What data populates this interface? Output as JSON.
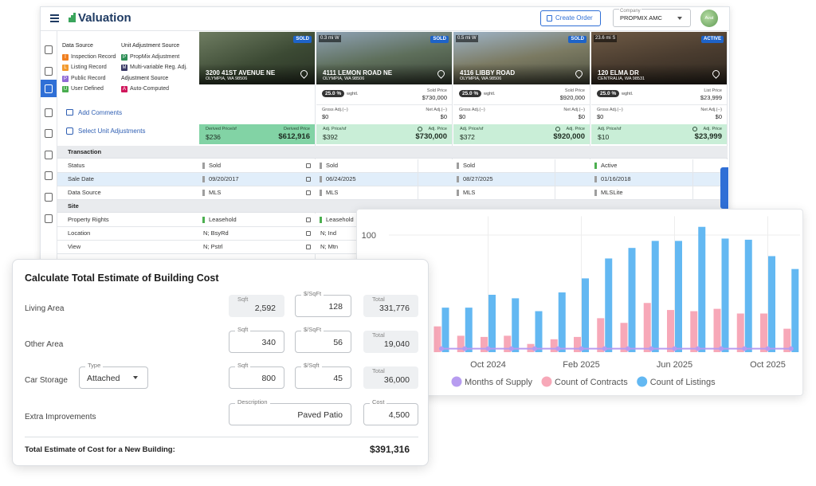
{
  "header": {
    "app_title": "Valuation",
    "create_order": "Create Order",
    "company_label": "Company",
    "company": "PROPMIX AMC",
    "avatar": "Avat"
  },
  "legend": {
    "data_source_title": "Data Source",
    "unit_adjustment_title": "Unit Adjustment Source",
    "adjustment_source_title": "Adjustment Source",
    "data_sources": [
      {
        "code": "I",
        "label": "Inspection Record",
        "color": "#f07f1f"
      },
      {
        "code": "L",
        "label": "Listing Record",
        "color": "#f29a2e"
      },
      {
        "code": "P",
        "label": "Public Record",
        "color": "#8f6ad6"
      },
      {
        "code": "U",
        "label": "User Defined",
        "color": "#49ad4f"
      }
    ],
    "unit_adjustment_sources": [
      {
        "code": "P",
        "label": "PropMix Adjustment",
        "color": "#2f8f57"
      },
      {
        "code": "M",
        "label": "Multi-variable Reg. Adj.",
        "color": "#3a3a66"
      }
    ],
    "adjustment_sources": [
      {
        "code": "A",
        "label": "Auto-Computed",
        "color": "#d0175c"
      }
    ]
  },
  "actions": {
    "add_comments": "Add Comments",
    "select_adjustments": "Select Unit Adjustments"
  },
  "properties": [
    {
      "badge": "SOLD",
      "address": "3200 41ST AVENUE NE",
      "city": "OLYMPIA, WA 98506",
      "footer_left_label": "Derived Price/sf",
      "footer_left": "$236",
      "footer_right_label": "Derived Price",
      "footer_right": "$612,916"
    },
    {
      "badge": "SOLD",
      "distance": "0.3 mi W",
      "address": "4111 LEMON ROAD NE",
      "city": "OLYMPIA, WA 98506",
      "weight": "25.0 %",
      "weight_label": "wghtl.",
      "price_label": "Sold Price",
      "price": "$730,000",
      "gross_label": "Gross Adj.(--)",
      "gross": "$0",
      "net_label": "Net Adj.(--)",
      "net": "$0",
      "footer_left_label": "Adj. Price/sf",
      "footer_left": "$392",
      "footer_right_label": "Adj. Price",
      "footer_right": "$730,000"
    },
    {
      "badge": "SOLD",
      "distance": "0.5 mi W",
      "address": "4116 LIBBY ROAD",
      "city": "OLYMPIA, WA 98506",
      "weight": "25.0 %",
      "weight_label": "wghtl.",
      "price_label": "Sold Price",
      "price": "$920,000",
      "gross_label": "Gross Adj.(--)",
      "gross": "$0",
      "net_label": "Net Adj.(--)",
      "net": "$0",
      "footer_left_label": "Adj. Price/sf",
      "footer_left": "$372",
      "footer_right_label": "Adj. Price",
      "footer_right": "$920,000"
    },
    {
      "badge": "ACTIVE",
      "distance": "23.6 mi S",
      "address": "120 ELMA DR",
      "city": "CENTRALIA, WA 98531",
      "weight": "25.0 %",
      "weight_label": "wghtl.",
      "price_label": "List Price",
      "price": "$23,999",
      "gross_label": "Gross Adj.(--)",
      "gross": "$0",
      "net_label": "Net Adj.(--)",
      "net": "$0",
      "footer_left_label": "Adj. Price/sf",
      "footer_left": "$10",
      "footer_right_label": "Adj. Price",
      "footer_right": "$23,999"
    }
  ],
  "table": {
    "sections": [
      {
        "title": "Transaction",
        "rows": [
          {
            "label": "Status",
            "cells": [
              "Sold",
              "Sold",
              "Sold",
              "Active"
            ],
            "markers": [
              "#9e9e9e",
              "#9e9e9e",
              "#9e9e9e",
              "#4caf50"
            ]
          },
          {
            "label": "Sale Date",
            "cells": [
              "09/20/2017",
              "06/24/2025",
              "08/27/2025",
              "01/16/2018"
            ],
            "markers": [
              "#9e9e9e",
              "#9e9e9e",
              "#9e9e9e",
              "#9e9e9e"
            ]
          },
          {
            "label": "Data Source",
            "cells": [
              "MLS",
              "MLS",
              "MLS",
              "MLSLite"
            ],
            "markers": [
              "#9e9e9e",
              "#9e9e9e",
              "#9e9e9e",
              "#9e9e9e"
            ]
          }
        ]
      },
      {
        "title": "Site",
        "rows": [
          {
            "label": "Property Rights",
            "cells": [
              "Leasehold",
              "Leasehold"
            ],
            "markers": [
              "#4caf50",
              "#4caf50"
            ]
          },
          {
            "label": "Location",
            "cells": [
              "N; BsyRd",
              "N; Ind"
            ]
          },
          {
            "label": "View",
            "cells": [
              "N; Pstrl",
              "N; Mtn"
            ]
          }
        ]
      }
    ]
  },
  "chart_data": {
    "type": "bar",
    "categories": [
      null,
      null,
      "Oct 2024",
      null,
      null,
      null,
      "Feb 2025",
      null,
      null,
      null,
      "Jun 2025",
      null,
      null,
      null,
      "Oct 2025",
      null
    ],
    "series": [
      {
        "name": "Months of Supply",
        "type": "line",
        "color": "#b79cf0",
        "values": [
          3,
          3,
          3,
          3,
          3,
          3,
          3,
          3,
          3,
          3,
          3,
          3,
          3,
          3,
          3,
          3
        ]
      },
      {
        "name": "Count of Contracts",
        "color": "#f7a8b8",
        "values": [
          22,
          14,
          13,
          14,
          7,
          11,
          13,
          29,
          25,
          42,
          36,
          35,
          37,
          33,
          33,
          20
        ]
      },
      {
        "name": "Count of Listings",
        "color": "#63b8f2",
        "values": [
          38,
          38,
          49,
          46,
          35,
          51,
          63,
          80,
          89,
          95,
          95,
          107,
          97,
          96,
          82,
          71
        ]
      }
    ],
    "ylim": [
      0,
      116
    ],
    "yticks": [
      100
    ],
    "grid": true,
    "legend": "bottom"
  },
  "cost_estimate": {
    "title": "Calculate Total Estimate of Building Cost",
    "living_area": {
      "label": "Living Area",
      "sqft_label": "Sqft",
      "sqft": "2,592",
      "rate_label": "$/SqFt",
      "rate": "128",
      "total_label": "Total",
      "total": "331,776"
    },
    "other_area": {
      "label": "Other Area",
      "sqft_label": "Sqft",
      "sqft": "340",
      "rate_label": "$/SqFt",
      "rate": "56",
      "total_label": "Total",
      "total": "19,040"
    },
    "car_storage": {
      "label": "Car Storage",
      "type_label": "Type",
      "type": "Attached",
      "sqft_label": "Sqft",
      "sqft": "800",
      "rate_label": "$/Sqft",
      "rate": "45",
      "total_label": "Total",
      "total": "36,000"
    },
    "extra_improvements": {
      "label": "Extra Improvements",
      "description_label": "Description",
      "description": "Paved Patio",
      "cost_label": "Cost",
      "cost": "4,500"
    },
    "total_label": "Total Estimate of Cost for a New Building:",
    "total": "$391,316"
  }
}
